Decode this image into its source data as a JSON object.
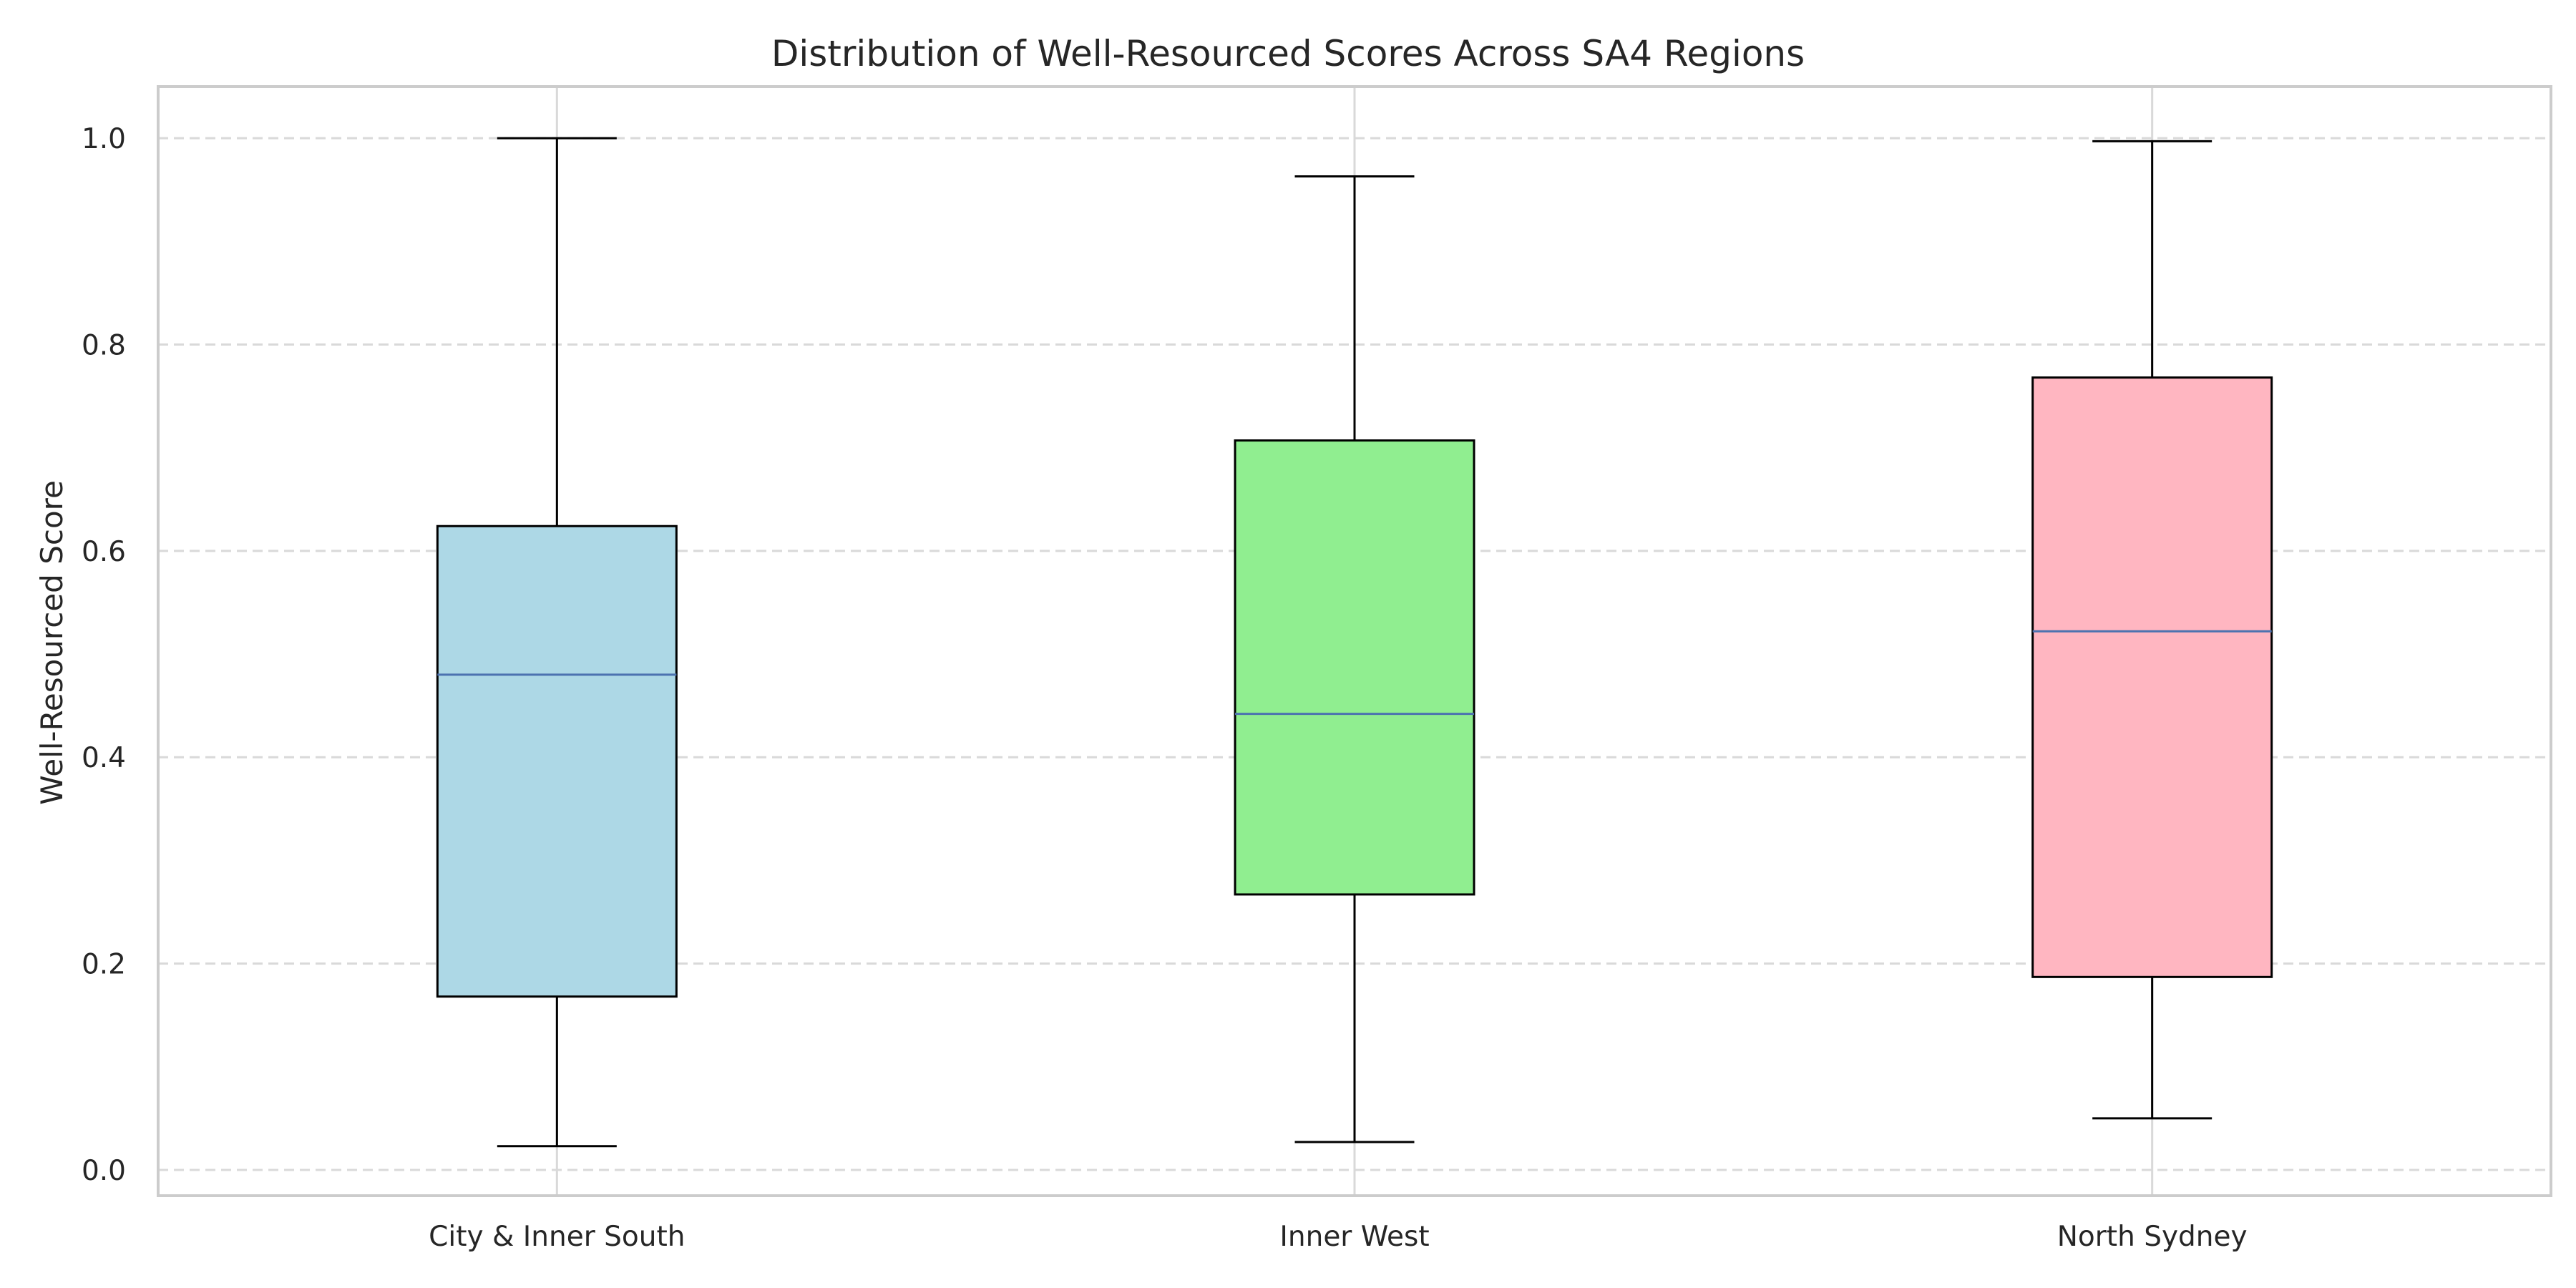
{
  "chart_data": {
    "type": "box",
    "title": "Distribution of Well-Resourced Scores Across SA4 Regions",
    "xlabel": "",
    "ylabel": "Well-Resourced Score",
    "ylim": [
      -0.025,
      1.05
    ],
    "yticks": [
      0.0,
      0.2,
      0.4,
      0.6,
      0.8,
      1.0
    ],
    "ytick_labels": [
      "0.0",
      "0.2",
      "0.4",
      "0.6",
      "0.8",
      "1.0"
    ],
    "grid": true,
    "categories": [
      "City & Inner South",
      "Inner West",
      "North Sydney"
    ],
    "boxes": [
      {
        "category": "City & Inner South",
        "whisker_low": 0.023,
        "q1": 0.168,
        "median": 0.48,
        "q3": 0.624,
        "whisker_high": 1.0,
        "color": "#add8e6"
      },
      {
        "category": "Inner West",
        "whisker_low": 0.027,
        "q1": 0.267,
        "median": 0.442,
        "q3": 0.707,
        "whisker_high": 0.963,
        "color": "#90ee90"
      },
      {
        "category": "North Sydney",
        "whisker_low": 0.05,
        "q1": 0.187,
        "median": 0.522,
        "q3": 0.768,
        "whisker_high": 0.997,
        "color": "#ffb6c1"
      }
    ],
    "colors": {
      "median": "#4c72b0",
      "box_edge": "#000000",
      "grid": "#d9d9d9",
      "spine": "#cccccc"
    }
  }
}
